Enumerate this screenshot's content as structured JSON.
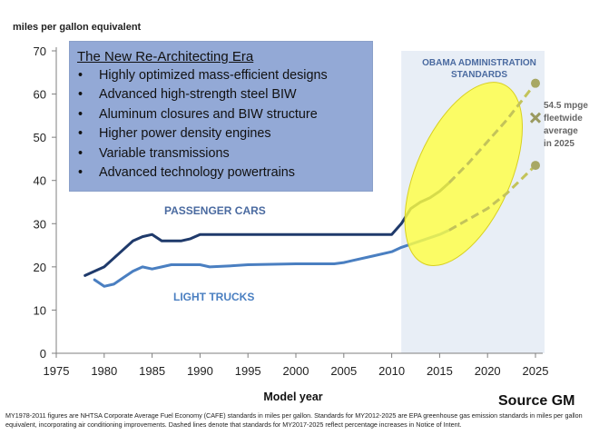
{
  "chart_data": {
    "type": "line",
    "ylabel": "miles per gallon equivalent",
    "xlabel": "Model year",
    "xlim": [
      1975,
      2025
    ],
    "ylim": [
      0,
      70
    ],
    "x_ticks": [
      "1975",
      "1980",
      "1985",
      "1990",
      "1995",
      "2000",
      "2005",
      "2010",
      "2015",
      "2020",
      "2025"
    ],
    "y_ticks": [
      "0",
      "10",
      "20",
      "30",
      "40",
      "50",
      "60",
      "70"
    ],
    "shaded_region": {
      "from": 2011,
      "to": 2025,
      "label_line1": "OBAMA ADMINISTRATION",
      "label_line2": "STANDARDS"
    },
    "series": [
      {
        "name": "PASSENGER CARS",
        "color": "#1f3a6b",
        "solid": [
          [
            1978,
            18.0
          ],
          [
            1979,
            19.0
          ],
          [
            1980,
            20.0
          ],
          [
            1981,
            22.0
          ],
          [
            1982,
            24.0
          ],
          [
            1983,
            26.0
          ],
          [
            1984,
            27.0
          ],
          [
            1985,
            27.5
          ],
          [
            1986,
            26.0
          ],
          [
            1987,
            26.0
          ],
          [
            1988,
            26.0
          ],
          [
            1989,
            26.5
          ],
          [
            1990,
            27.5
          ],
          [
            1995,
            27.5
          ],
          [
            2000,
            27.5
          ],
          [
            2005,
            27.5
          ],
          [
            2010,
            27.5
          ],
          [
            2011,
            30.0
          ],
          [
            2012,
            33.5
          ],
          [
            2013,
            35.0
          ],
          [
            2014,
            36.0
          ],
          [
            2015,
            37.5
          ],
          [
            2016,
            39.5
          ]
        ],
        "dashed": [
          [
            2016,
            39.5
          ],
          [
            2018,
            44.0
          ],
          [
            2020,
            49.0
          ],
          [
            2022,
            54.0
          ],
          [
            2025,
            62.5
          ]
        ],
        "end_value": 62.5
      },
      {
        "name": "LIGHT TRUCKS",
        "color": "#4a7fc1",
        "solid": [
          [
            1979,
            17.0
          ],
          [
            1980,
            15.5
          ],
          [
            1981,
            16.0
          ],
          [
            1982,
            17.5
          ],
          [
            1983,
            19.0
          ],
          [
            1984,
            20.0
          ],
          [
            1985,
            19.5
          ],
          [
            1986,
            20.0
          ],
          [
            1987,
            20.5
          ],
          [
            1990,
            20.5
          ],
          [
            1991,
            20.0
          ],
          [
            1993,
            20.2
          ],
          [
            1995,
            20.5
          ],
          [
            2000,
            20.7
          ],
          [
            2004,
            20.7
          ],
          [
            2005,
            21.0
          ],
          [
            2006,
            21.5
          ],
          [
            2008,
            22.5
          ],
          [
            2010,
            23.5
          ],
          [
            2011,
            24.5
          ],
          [
            2013,
            26.0
          ],
          [
            2015,
            27.5
          ],
          [
            2016,
            28.5
          ]
        ],
        "dashed": [
          [
            2016,
            28.5
          ],
          [
            2018,
            31.0
          ],
          [
            2020,
            33.5
          ],
          [
            2022,
            37.0
          ],
          [
            2025,
            43.5
          ]
        ],
        "end_value": 43.5
      }
    ],
    "fleet_marker": {
      "x": 2025,
      "y": 54.5,
      "label_lines": [
        "54.5 mpge",
        "fleetwide",
        "average",
        "in 2025"
      ]
    },
    "highlight": "yellow ellipse over 2011-2025 standards",
    "colors": {
      "shade": "#e8eef6",
      "highlight": "#ffff44",
      "marker": "#9a9a60",
      "axis": "#7f7f7f"
    }
  },
  "textbox": {
    "title": "The New Re-Architecting Era",
    "items": [
      "Highly optimized mass-efficient designs",
      "Advanced high-strength steel BIW",
      "Aluminum closures and BIW structure",
      "Higher power density engines",
      "Variable transmissions",
      "Advanced technology powertrains"
    ]
  },
  "footnote": "MY1978-2011 figures are NHTSA Corporate Average Fuel Economy (CAFE) standards in miles per gallon.  Standards for MY2012-2025 are EPA greenhouse gas emission standards in miles per gallon equivalent, incorporating air conditioning improvements.  Dashed lines denote that standards for MY2017-2025 reflect percentage increases in Notice of Intent.",
  "source": "Source GM"
}
